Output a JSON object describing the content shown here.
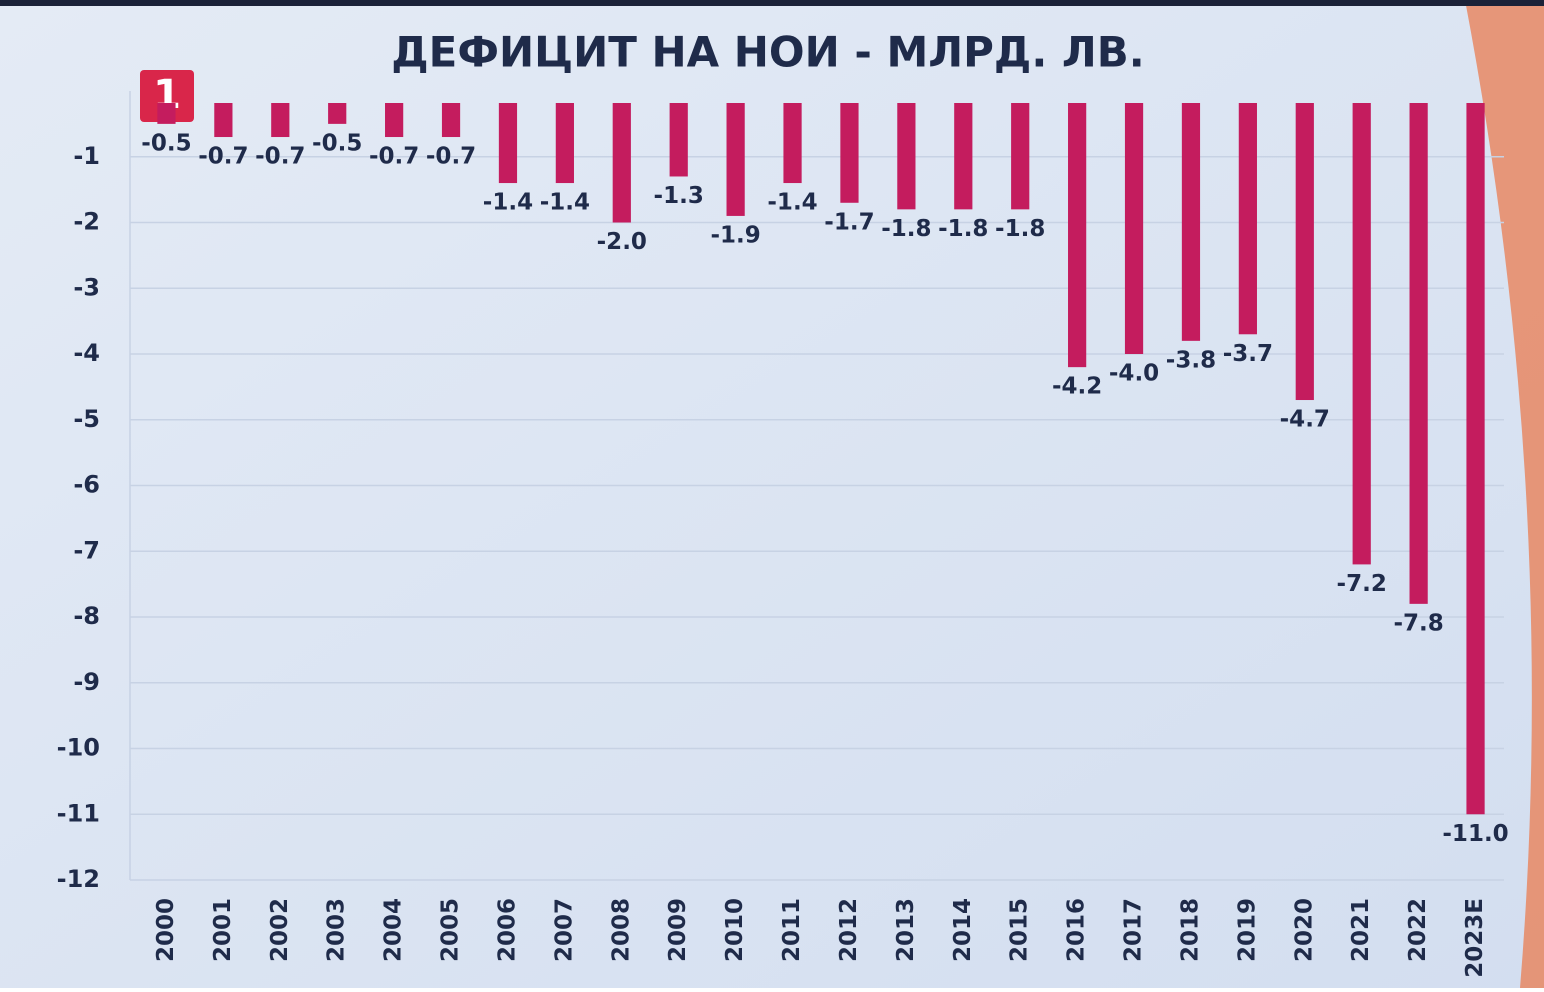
{
  "logo": "1",
  "chart_data": {
    "type": "bar",
    "title": "ДЕФИЦИТ НА НОИ - МЛРД. ЛВ.",
    "categories": [
      "2000",
      "2001",
      "2002",
      "2003",
      "2004",
      "2005",
      "2006",
      "2007",
      "2008",
      "2009",
      "2010",
      "2011",
      "2012",
      "2013",
      "2014",
      "2015",
      "2016",
      "2017",
      "2018",
      "2019",
      "2020",
      "2021",
      "2022",
      "2023E"
    ],
    "values": [
      -0.5,
      -0.7,
      -0.7,
      -0.5,
      -0.7,
      -0.7,
      -1.4,
      -1.4,
      -2.0,
      -1.3,
      -1.9,
      -1.4,
      -1.7,
      -1.8,
      -1.8,
      -1.8,
      -4.2,
      -4.0,
      -3.8,
      -3.7,
      -4.7,
      -7.2,
      -7.8,
      -11.0
    ],
    "value_labels": [
      "-0.5",
      "-0.7",
      "-0.7",
      "-0.5",
      "-0.7",
      "-0.7",
      "-1.4",
      "-1.4",
      "-2.0",
      "-1.3",
      "-1.9",
      "-1.4",
      "-1.7",
      "-1.8",
      "-1.8",
      "-1.8",
      "-4.2",
      "-4.0",
      "-3.8",
      "-3.7",
      "-4.7",
      "-7.2",
      "-7.8",
      "-11.0"
    ],
    "color": "#c41c5e",
    "ylim": [
      -12,
      0
    ],
    "yticks": [
      -12,
      -11,
      -10,
      -9,
      -8,
      -7,
      -6,
      -5,
      -4,
      -3,
      -2,
      -1
    ],
    "grid": true
  }
}
